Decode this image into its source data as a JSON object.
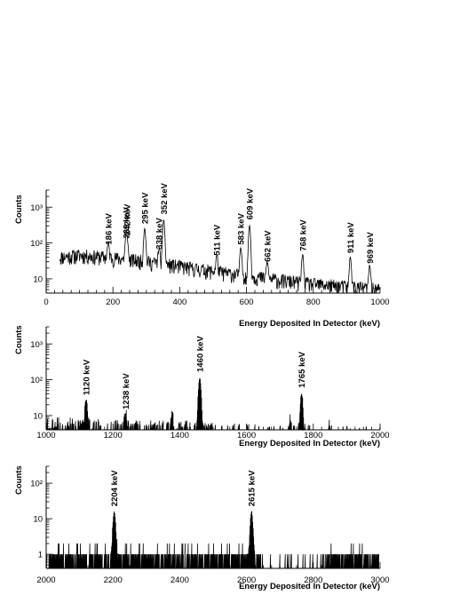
{
  "chart_data": [
    {
      "type": "line",
      "panel": 1,
      "xlabel": "Energy Deposited In Detector (keV)",
      "ylabel": "Counts",
      "xlim": [
        0,
        1000
      ],
      "ylim": [
        4,
        3000
      ],
      "yscale": "log",
      "xticks": [
        0,
        200,
        400,
        600,
        800,
        1000
      ],
      "yticks": [
        {
          "value": 10,
          "label": "10"
        },
        {
          "value": 100,
          "label": "10²"
        },
        {
          "value": 1000,
          "label": "10³"
        }
      ],
      "grid": false,
      "series": [
        {
          "continuum": [
            [
              40,
              40
            ],
            [
              100,
              45
            ],
            [
              200,
              38
            ],
            [
              300,
              30
            ],
            [
              400,
              22
            ],
            [
              500,
              16
            ],
            [
              600,
              12
            ],
            [
              700,
              9
            ],
            [
              800,
              7
            ],
            [
              900,
              6
            ],
            [
              1000,
              5
            ]
          ],
          "peaks": [
            {
              "energy": 186,
              "counts": 60,
              "label": "186 keV"
            },
            {
              "energy": 239,
              "counts": 90,
              "label": "239 keV"
            },
            {
              "energy": 242,
              "counts": 110,
              "label": "242 keV"
            },
            {
              "energy": 295,
              "counts": 230,
              "label": "295 keV"
            },
            {
              "energy": 338,
              "counts": 45,
              "label": "338 keV"
            },
            {
              "energy": 352,
              "counts": 420,
              "label": "352 keV"
            },
            {
              "energy": 511,
              "counts": 30,
              "label": "511 keV"
            },
            {
              "energy": 583,
              "counts": 60,
              "label": "583 keV"
            },
            {
              "energy": 609,
              "counts": 300,
              "label": "609 keV"
            },
            {
              "energy": 662,
              "counts": 20,
              "label": "662 keV"
            },
            {
              "energy": 768,
              "counts": 40,
              "label": "768 keV"
            },
            {
              "energy": 911,
              "counts": 35,
              "label": "911 keV"
            },
            {
              "energy": 969,
              "counts": 18,
              "label": "969 keV"
            }
          ]
        }
      ]
    },
    {
      "type": "line",
      "panel": 2,
      "xlabel": "Energy Deposited In Detector (keV)",
      "ylabel": "Counts",
      "xlim": [
        1000,
        2000
      ],
      "ylim": [
        4,
        3000
      ],
      "yscale": "log",
      "xticks": [
        1000,
        1200,
        1400,
        1600,
        1800,
        2000
      ],
      "yticks": [
        {
          "value": 10,
          "label": "10"
        },
        {
          "value": 100,
          "label": "10²"
        },
        {
          "value": 1000,
          "label": "10³"
        }
      ],
      "grid": false,
      "series": [
        {
          "continuum": [
            [
              1000,
              5
            ],
            [
              1200,
              4
            ],
            [
              1400,
              4
            ],
            [
              1600,
              3
            ],
            [
              1800,
              3
            ],
            [
              2000,
              3
            ]
          ],
          "peaks": [
            {
              "energy": 1120,
              "counts": 25,
              "label": "1120 keV"
            },
            {
              "energy": 1238,
              "counts": 10,
              "label": "1238 keV"
            },
            {
              "energy": 1377,
              "counts": 7,
              "label": ""
            },
            {
              "energy": 1460,
              "counts": 110,
              "label": "1460 keV"
            },
            {
              "energy": 1730,
              "counts": 6,
              "label": ""
            },
            {
              "energy": 1765,
              "counts": 40,
              "label": "1765 keV"
            },
            {
              "energy": 1848,
              "counts": 5,
              "label": ""
            }
          ]
        }
      ]
    },
    {
      "type": "line",
      "panel": 3,
      "xlabel": "Energy Deposited In Detector (keV)",
      "ylabel": "Counts",
      "xlim": [
        2000,
        3000
      ],
      "ylim": [
        0.4,
        300
      ],
      "yscale": "log",
      "xticks": [
        2000,
        2200,
        2400,
        2600,
        2800,
        3000
      ],
      "yticks": [
        {
          "value": 1,
          "label": "1"
        },
        {
          "value": 10,
          "label": "10"
        },
        {
          "value": 100,
          "label": "10²"
        }
      ],
      "grid": false,
      "series": [
        {
          "continuum": [
            [
              2000,
              1
            ],
            [
              2400,
              1
            ],
            [
              2640,
              1
            ],
            [
              2800,
              1
            ],
            [
              3000,
              1
            ]
          ],
          "peaks": [
            {
              "energy": 2204,
              "counts": 15,
              "label": "2204 keV"
            },
            {
              "energy": 2615,
              "counts": 15,
              "label": "2615 keV"
            }
          ]
        }
      ]
    }
  ]
}
